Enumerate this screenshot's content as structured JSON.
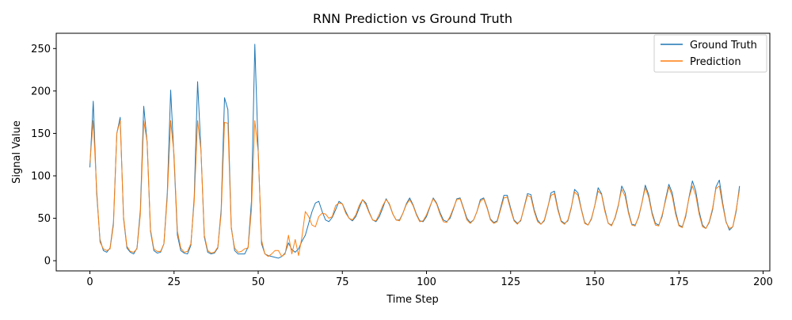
{
  "chart_data": {
    "type": "line",
    "title": "RNN Prediction vs Ground Truth",
    "xlabel": "Time Step",
    "ylabel": "Signal Value",
    "xlim": [
      -10,
      202
    ],
    "ylim": [
      -12,
      268
    ],
    "x_ticks": [
      0,
      25,
      50,
      75,
      100,
      125,
      150,
      175,
      200
    ],
    "y_ticks": [
      0,
      50,
      100,
      150,
      200,
      250
    ],
    "x_tick_labels": [
      "0",
      "25",
      "50",
      "75",
      "100",
      "125",
      "150",
      "175",
      "200"
    ],
    "y_tick_labels": [
      "0",
      "50",
      "100",
      "150",
      "200",
      "250"
    ],
    "grid": false,
    "legend": "upper-right",
    "series": [
      {
        "name": "Ground Truth",
        "color": "#1f77b4",
        "values": [
          110,
          188,
          80,
          25,
          12,
          10,
          15,
          45,
          150,
          169,
          50,
          15,
          10,
          8,
          15,
          60,
          182,
          140,
          35,
          12,
          9,
          10,
          20,
          80,
          201,
          120,
          30,
          12,
          9,
          8,
          18,
          75,
          211,
          130,
          28,
          10,
          8,
          9,
          15,
          60,
          192,
          178,
          40,
          12,
          8,
          8,
          8,
          16,
          70,
          255,
          130,
          20,
          8,
          6,
          5,
          4,
          3,
          5,
          9,
          21,
          13,
          10,
          14,
          23,
          30,
          44,
          58,
          68,
          70,
          58,
          48,
          46,
          51,
          60,
          70,
          67,
          58,
          50,
          47,
          52,
          62,
          72,
          68,
          57,
          48,
          46,
          52,
          62,
          73,
          66,
          55,
          48,
          48,
          56,
          67,
          74,
          66,
          55,
          47,
          46,
          52,
          63,
          74,
          68,
          57,
          48,
          46,
          50,
          61,
          73,
          74,
          62,
          50,
          45,
          48,
          58,
          72,
          74,
          63,
          49,
          45,
          47,
          62,
          77,
          77,
          62,
          48,
          44,
          47,
          63,
          79,
          78,
          60,
          48,
          43,
          47,
          62,
          80,
          82,
          62,
          47,
          44,
          47,
          62,
          84,
          80,
          61,
          45,
          42,
          49,
          65,
          86,
          79,
          60,
          44,
          42,
          50,
          65,
          88,
          80,
          58,
          43,
          42,
          51,
          68,
          89,
          78,
          57,
          44,
          42,
          52,
          72,
          90,
          80,
          58,
          42,
          40,
          52,
          75,
          94,
          82,
          58,
          42,
          38,
          45,
          60,
          87,
          95,
          68,
          46,
          36,
          40,
          58,
          88
        ]
      },
      {
        "name": "Prediction",
        "color": "#ff7f0e",
        "values": [
          115,
          165,
          85,
          22,
          14,
          12,
          14,
          42,
          150,
          165,
          52,
          17,
          11,
          10,
          14,
          55,
          165,
          140,
          37,
          14,
          11,
          11,
          20,
          75,
          165,
          125,
          35,
          15,
          10,
          11,
          20,
          70,
          165,
          130,
          30,
          12,
          9,
          10,
          16,
          55,
          163,
          162,
          38,
          15,
          10,
          11,
          14,
          15,
          60,
          165,
          128,
          24,
          8,
          5,
          8,
          12,
          12,
          5,
          8,
          30,
          8,
          25,
          6,
          28,
          58,
          52,
          42,
          40,
          52,
          56,
          55,
          50,
          52,
          65,
          68,
          67,
          56,
          50,
          48,
          54,
          65,
          72,
          66,
          56,
          48,
          47,
          55,
          65,
          72,
          67,
          55,
          48,
          47,
          56,
          66,
          72,
          65,
          54,
          46,
          47,
          54,
          64,
          73,
          67,
          55,
          46,
          45,
          52,
          62,
          72,
          73,
          61,
          48,
          44,
          48,
          58,
          70,
          73,
          62,
          48,
          44,
          46,
          60,
          74,
          75,
          60,
          47,
          43,
          48,
          62,
          77,
          75,
          58,
          46,
          43,
          48,
          63,
          77,
          79,
          60,
          46,
          43,
          48,
          63,
          81,
          77,
          60,
          44,
          42,
          50,
          65,
          82,
          78,
          58,
          44,
          41,
          51,
          66,
          84,
          76,
          56,
          42,
          41,
          52,
          68,
          86,
          75,
          55,
          42,
          41,
          54,
          70,
          87,
          76,
          55,
          41,
          39,
          54,
          74,
          88,
          77,
          55,
          40,
          38,
          46,
          62,
          85,
          88,
          65,
          45,
          38,
          40,
          60,
          84
        ]
      }
    ]
  }
}
